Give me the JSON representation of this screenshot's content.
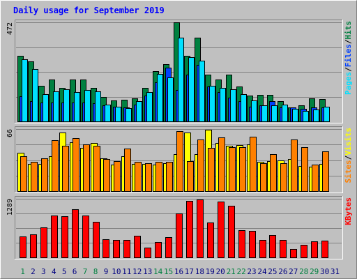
{
  "title": "Daily usage for September 2019",
  "colors": {
    "background": "#c0c0c0",
    "title": "#0000ff",
    "hits": "#008040",
    "files": "#0040ff",
    "pages": "#00e0ff",
    "visits": "#ffff00",
    "sites": "#ff8000",
    "kbytes": "#ff0000",
    "weekend_label": "#008040",
    "weekday_label": "#000080"
  },
  "chart_data": [
    {
      "type": "bar",
      "name": "hits-files-pages",
      "ymax_label": "472",
      "ylim": [
        0,
        472
      ],
      "legend": [
        "Pages",
        "Files",
        "Hits"
      ],
      "legend_separator": "/",
      "categories": [
        "1",
        "2",
        "3",
        "4",
        "5",
        "6",
        "7",
        "8",
        "9",
        "10",
        "11",
        "12",
        "13",
        "14",
        "15",
        "16",
        "17",
        "18",
        "19",
        "20",
        "21",
        "22",
        "23",
        "24",
        "25",
        "26",
        "27",
        "28",
        "29",
        "30",
        "31"
      ],
      "series": [
        {
          "name": "Hits",
          "values": [
            313,
            285,
            168,
            198,
            160,
            198,
            198,
            160,
            115,
            100,
            103,
            111,
            159,
            240,
            274,
            472,
            314,
            398,
            223,
            200,
            223,
            167,
            124,
            127,
            127,
            95,
            67,
            76,
            109,
            108,
            0
          ]
        },
        {
          "name": "Files",
          "values": [
            120,
            95,
            90,
            90,
            90,
            90,
            90,
            85,
            78,
            70,
            68,
            80,
            123,
            185,
            257,
            150,
            222,
            270,
            166,
            140,
            112,
            95,
            70,
            77,
            95,
            67,
            67,
            60,
            65,
            67,
            0
          ]
        },
        {
          "name": "Pages",
          "values": [
            296,
            250,
            130,
            143,
            153,
            140,
            150,
            142,
            80,
            70,
            62,
            96,
            141,
            226,
            210,
            400,
            306,
            290,
            170,
            160,
            154,
            130,
            100,
            77,
            75,
            80,
            60,
            50,
            58,
            70,
            0
          ]
        }
      ]
    },
    {
      "type": "bar",
      "name": "visits-sites",
      "ymax_label": "66",
      "ylim": [
        0,
        66
      ],
      "legend": [
        "Sites",
        "Visits"
      ],
      "legend_separator": "/",
      "categories": [
        "1",
        "2",
        "3",
        "4",
        "5",
        "6",
        "7",
        "8",
        "9",
        "10",
        "11",
        "12",
        "13",
        "14",
        "15",
        "16",
        "17",
        "18",
        "19",
        "20",
        "21",
        "22",
        "23",
        "24",
        "25",
        "26",
        "27",
        "28",
        "29",
        "30",
        "31"
      ],
      "series": [
        {
          "name": "Visits",
          "values": [
            41,
            29,
            29,
            37,
            62,
            52,
            46,
            51,
            35,
            28,
            37,
            29,
            29,
            28,
            30,
            39,
            62,
            39,
            65,
            51,
            48,
            49,
            50,
            31,
            32,
            33,
            34,
            27,
            26,
            29,
            0
          ]
        },
        {
          "name": "Sites",
          "values": [
            37,
            31,
            35,
            54,
            48,
            56,
            50,
            48,
            34,
            32,
            45,
            31,
            30,
            31,
            31,
            64,
            32,
            55,
            46,
            57,
            47,
            47,
            58,
            30,
            39,
            30,
            55,
            47,
            28,
            42,
            0
          ]
        }
      ]
    },
    {
      "type": "bar",
      "name": "kbytes",
      "ymax_label": "1289",
      "ylim": [
        0,
        1289
      ],
      "legend": [
        "KBytes"
      ],
      "categories": [
        "1",
        "2",
        "3",
        "4",
        "5",
        "6",
        "7",
        "8",
        "9",
        "10",
        "11",
        "12",
        "13",
        "14",
        "15",
        "16",
        "17",
        "18",
        "19",
        "20",
        "21",
        "22",
        "23",
        "24",
        "25",
        "26",
        "27",
        "28",
        "29",
        "30",
        "31"
      ],
      "series": [
        {
          "name": "KBytes",
          "values": [
            460,
            500,
            660,
            920,
            900,
            1060,
            920,
            780,
            400,
            380,
            390,
            470,
            210,
            340,
            450,
            960,
            1250,
            1280,
            770,
            1230,
            1130,
            600,
            580,
            380,
            490,
            390,
            190,
            280,
            350,
            370,
            0
          ]
        }
      ]
    }
  ],
  "days": [
    {
      "label": "1",
      "weekend": true
    },
    {
      "label": "2",
      "weekend": false
    },
    {
      "label": "3",
      "weekend": false
    },
    {
      "label": "4",
      "weekend": false
    },
    {
      "label": "5",
      "weekend": false
    },
    {
      "label": "6",
      "weekend": false
    },
    {
      "label": "7",
      "weekend": true
    },
    {
      "label": "8",
      "weekend": true
    },
    {
      "label": "9",
      "weekend": false
    },
    {
      "label": "10",
      "weekend": false
    },
    {
      "label": "11",
      "weekend": false
    },
    {
      "label": "12",
      "weekend": false
    },
    {
      "label": "13",
      "weekend": false
    },
    {
      "label": "14",
      "weekend": true
    },
    {
      "label": "15",
      "weekend": true
    },
    {
      "label": "16",
      "weekend": false
    },
    {
      "label": "17",
      "weekend": false
    },
    {
      "label": "18",
      "weekend": false
    },
    {
      "label": "19",
      "weekend": false
    },
    {
      "label": "20",
      "weekend": false
    },
    {
      "label": "21",
      "weekend": true
    },
    {
      "label": "22",
      "weekend": true
    },
    {
      "label": "23",
      "weekend": false
    },
    {
      "label": "24",
      "weekend": false
    },
    {
      "label": "25",
      "weekend": false
    },
    {
      "label": "26",
      "weekend": false
    },
    {
      "label": "27",
      "weekend": false
    },
    {
      "label": "28",
      "weekend": true
    },
    {
      "label": "29",
      "weekend": true
    },
    {
      "label": "30",
      "weekend": false
    },
    {
      "label": "31",
      "weekend": false
    }
  ]
}
